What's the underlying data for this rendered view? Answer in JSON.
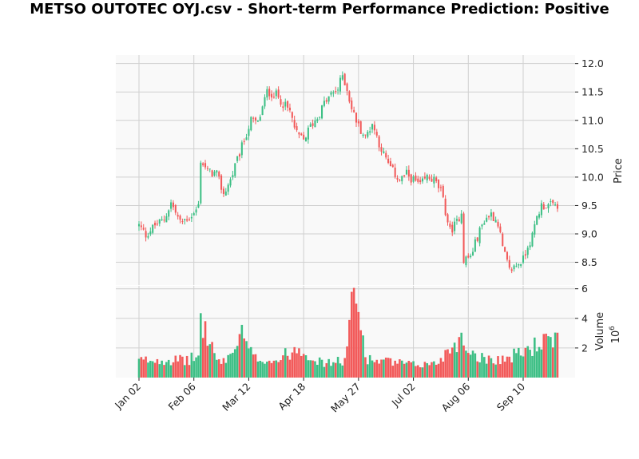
{
  "chart_data": {
    "type": "candlestick",
    "title": "METSO OUTOTEC OYJ.csv - Short-term Performance Prediction: Positive",
    "price_panel": {
      "ylabel": "Price",
      "ylim": [
        8.1,
        12.15
      ],
      "yticks": [
        "8.5",
        "9.0",
        "9.5",
        "10.0",
        "10.5",
        "11.0",
        "11.5",
        "12.0"
      ]
    },
    "volume_panel": {
      "ylabel": "Volume",
      "exponent_label": "10",
      "exponent_power": "6",
      "ylim": [
        0,
        6.2
      ],
      "yticks": [
        "2",
        "4",
        "6"
      ]
    },
    "x_ticks": [
      "Jan 02",
      "Feb 06",
      "Mar 12",
      "Apr 18",
      "May 27",
      "Jul 02",
      "Aug 06",
      "Sep 10"
    ],
    "x_tick_session_index": [
      0,
      24,
      48,
      72,
      96,
      120,
      144,
      168
    ],
    "colors": {
      "up": "#3dbf85",
      "down": "#f25a5a",
      "panel_bg": "#f9f9f9",
      "grid": "#d0d0d0"
    },
    "sessions": 184,
    "close_anchors": [
      [
        0,
        9.15
      ],
      [
        3,
        8.98
      ],
      [
        7,
        9.15
      ],
      [
        11,
        9.25
      ],
      [
        14,
        9.55
      ],
      [
        18,
        9.2
      ],
      [
        22,
        9.3
      ],
      [
        24,
        9.35
      ],
      [
        26,
        9.5
      ],
      [
        27,
        10.3
      ],
      [
        30,
        10.1
      ],
      [
        34,
        10.05
      ],
      [
        37,
        9.7
      ],
      [
        40,
        9.95
      ],
      [
        43,
        10.3
      ],
      [
        46,
        10.65
      ],
      [
        49,
        11.0
      ],
      [
        52,
        10.95
      ],
      [
        56,
        11.5
      ],
      [
        60,
        11.45
      ],
      [
        63,
        11.3
      ],
      [
        66,
        11.15
      ],
      [
        69,
        10.75
      ],
      [
        72,
        10.65
      ],
      [
        75,
        10.9
      ],
      [
        78,
        11.05
      ],
      [
        81,
        11.3
      ],
      [
        84,
        11.45
      ],
      [
        87,
        11.55
      ],
      [
        89,
        11.8
      ],
      [
        91,
        11.55
      ],
      [
        93,
        11.2
      ],
      [
        96,
        10.9
      ],
      [
        99,
        10.7
      ],
      [
        102,
        10.95
      ],
      [
        105,
        10.6
      ],
      [
        108,
        10.3
      ],
      [
        111,
        10.1
      ],
      [
        114,
        9.95
      ],
      [
        117,
        10.05
      ],
      [
        120,
        9.95
      ],
      [
        123,
        9.85
      ],
      [
        126,
        10.0
      ],
      [
        129,
        9.95
      ],
      [
        132,
        9.75
      ],
      [
        134,
        9.4
      ],
      [
        136,
        9.05
      ],
      [
        139,
        9.2
      ],
      [
        141,
        9.4
      ],
      [
        142,
        8.55
      ],
      [
        145,
        8.6
      ],
      [
        148,
        8.95
      ],
      [
        151,
        9.25
      ],
      [
        154,
        9.35
      ],
      [
        157,
        9.2
      ],
      [
        159,
        8.75
      ],
      [
        162,
        8.35
      ],
      [
        165,
        8.45
      ],
      [
        168,
        8.55
      ],
      [
        170,
        8.8
      ],
      [
        172,
        8.95
      ],
      [
        174,
        9.3
      ],
      [
        176,
        9.5
      ]
    ],
    "volume_anchors": [
      [
        0,
        1.2
      ],
      [
        10,
        1.3
      ],
      [
        20,
        1.2
      ],
      [
        26,
        1.5
      ],
      [
        27,
        4.1
      ],
      [
        35,
        1.0
      ],
      [
        40,
        1.6
      ],
      [
        45,
        3.0
      ],
      [
        50,
        1.4
      ],
      [
        60,
        1.2
      ],
      [
        70,
        2.2
      ],
      [
        80,
        1.0
      ],
      [
        90,
        1.2
      ],
      [
        94,
        6.0
      ],
      [
        100,
        1.3
      ],
      [
        110,
        1.1
      ],
      [
        120,
        0.9
      ],
      [
        130,
        1.0
      ],
      [
        140,
        2.8
      ],
      [
        145,
        1.9
      ],
      [
        150,
        1.4
      ],
      [
        160,
        1.3
      ],
      [
        170,
        2.0
      ],
      [
        176,
        2.5
      ]
    ]
  }
}
